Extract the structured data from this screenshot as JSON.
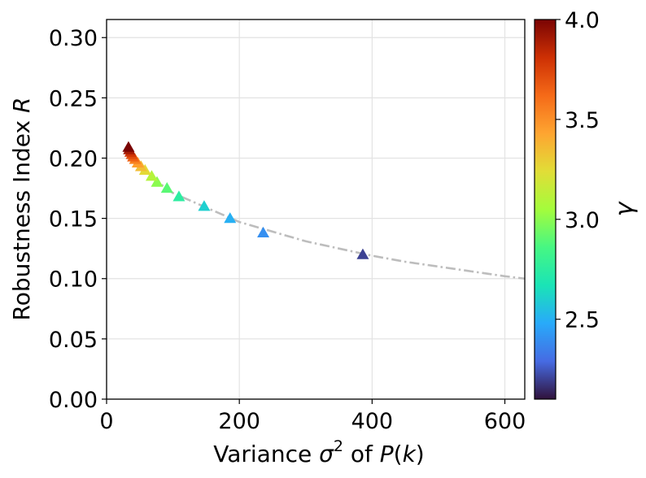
{
  "chart_data": {
    "type": "scatter",
    "title": "",
    "xlabel_main": "Variance ",
    "xlabel_sigma": "σ",
    "xlabel_sup": "2",
    "xlabel_mid": " of ",
    "xlabel_P": "P",
    "xlabel_paren_open": "(",
    "xlabel_k": "k",
    "xlabel_paren_close": ")",
    "ylabel_main": "Robustness Index ",
    "ylabel_R": "R",
    "xlim": [
      0,
      630
    ],
    "ylim": [
      0.0,
      0.315
    ],
    "xticks": [
      0,
      200,
      400,
      600
    ],
    "xtick_labels": [
      "0",
      "200",
      "400",
      "600"
    ],
    "yticks": [
      0.0,
      0.05,
      0.1,
      0.15,
      0.2,
      0.25,
      0.3
    ],
    "ytick_labels": [
      "0.00",
      "0.05",
      "0.10",
      "0.15",
      "0.20",
      "0.25",
      "0.30"
    ],
    "grid": true,
    "marker": "triangle-up",
    "points": [
      {
        "x": 386,
        "y": 0.12,
        "gamma": 2.2
      },
      {
        "x": 236,
        "y": 0.138,
        "gamma": 2.4
      },
      {
        "x": 186,
        "y": 0.15,
        "gamma": 2.5
      },
      {
        "x": 147,
        "y": 0.16,
        "gamma": 2.6
      },
      {
        "x": 109,
        "y": 0.168,
        "gamma": 2.75
      },
      {
        "x": 91,
        "y": 0.175,
        "gamma": 2.9
      },
      {
        "x": 76,
        "y": 0.18,
        "gamma": 3.0
      },
      {
        "x": 68,
        "y": 0.185,
        "gamma": 3.1
      },
      {
        "x": 58,
        "y": 0.19,
        "gamma": 3.25
      },
      {
        "x": 52,
        "y": 0.193,
        "gamma": 3.35
      },
      {
        "x": 47,
        "y": 0.196,
        "gamma": 3.45
      },
      {
        "x": 43,
        "y": 0.199,
        "gamma": 3.55
      },
      {
        "x": 40,
        "y": 0.201,
        "gamma": 3.65
      },
      {
        "x": 38,
        "y": 0.203,
        "gamma": 3.72
      },
      {
        "x": 36,
        "y": 0.205,
        "gamma": 3.8
      },
      {
        "x": 34,
        "y": 0.207,
        "gamma": 3.9
      },
      {
        "x": 33,
        "y": 0.209,
        "gamma": 4.0
      }
    ],
    "fit_line": {
      "style": "dash-dot",
      "color": "#bdbdbd",
      "x": [
        33,
        50,
        75,
        100,
        150,
        200,
        250,
        300,
        350,
        400,
        450,
        500,
        550,
        600,
        630
      ],
      "y": [
        0.208,
        0.194,
        0.181,
        0.171,
        0.159,
        0.147,
        0.139,
        0.131,
        0.125,
        0.119,
        0.114,
        0.11,
        0.106,
        0.102,
        0.1
      ]
    },
    "colorbar": {
      "label": "γ",
      "range": [
        2.1,
        4.0
      ],
      "ticks": [
        2.5,
        3.0,
        3.5,
        4.0
      ],
      "tick_labels": [
        "2.5",
        "3.0",
        "3.5",
        "4.0"
      ],
      "colormap": "turbo"
    }
  }
}
